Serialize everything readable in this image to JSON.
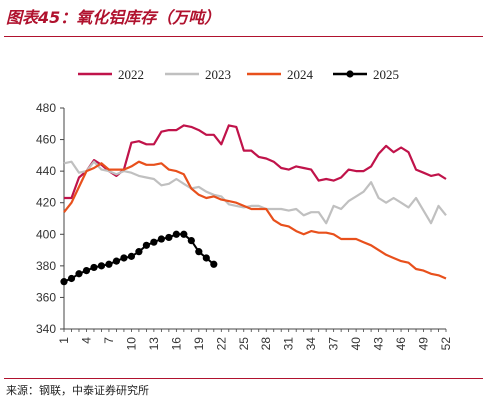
{
  "figure": {
    "title": "图表45：氧化铝库存（万吨）",
    "source": "来源：钢联，中泰证券研究所"
  },
  "colors": {
    "2022": "#c0134a",
    "2023": "#c0c0c0",
    "2024": "#e8501c",
    "2025": "#000000",
    "title": "#b0122e",
    "axis": "#444444"
  },
  "chart_data": {
    "type": "line",
    "title": "",
    "xlabel": "",
    "ylabel": "",
    "xlim": [
      1,
      52
    ],
    "ylim": [
      340,
      480
    ],
    "yticks": [
      340,
      360,
      380,
      400,
      420,
      440,
      460,
      480
    ],
    "xticks": [
      1,
      4,
      7,
      10,
      13,
      16,
      19,
      22,
      25,
      28,
      31,
      34,
      37,
      40,
      43,
      46,
      49,
      52
    ],
    "legend_position": "top",
    "grid": false,
    "series": [
      {
        "name": "2022",
        "markers": false,
        "x": [
          1,
          2,
          3,
          4,
          5,
          6,
          7,
          8,
          9,
          10,
          11,
          12,
          13,
          14,
          15,
          16,
          17,
          18,
          19,
          20,
          21,
          22,
          23,
          24,
          25,
          26,
          27,
          28,
          29,
          30,
          31,
          32,
          33,
          34,
          35,
          36,
          37,
          38,
          39,
          40,
          41,
          42,
          43,
          44,
          45,
          46,
          47,
          48,
          49,
          50,
          51,
          52
        ],
        "values": [
          423,
          423,
          436,
          440,
          447,
          444,
          440,
          437,
          441,
          458,
          459,
          457,
          457,
          465,
          466,
          466,
          469,
          468,
          466,
          463,
          463,
          457,
          469,
          468,
          453,
          453,
          449,
          448,
          446,
          442,
          441,
          443,
          442,
          441,
          434,
          435,
          434,
          436,
          441,
          440,
          440,
          443,
          451,
          456,
          452,
          455,
          452,
          441,
          439,
          437,
          438,
          435
        ]
      },
      {
        "name": "2023",
        "markers": false,
        "x": [
          1,
          2,
          3,
          4,
          5,
          6,
          7,
          8,
          9,
          10,
          11,
          12,
          13,
          14,
          15,
          16,
          17,
          18,
          19,
          20,
          21,
          22,
          23,
          24,
          25,
          26,
          27,
          28,
          29,
          30,
          31,
          32,
          33,
          34,
          35,
          36,
          37,
          38,
          39,
          40,
          41,
          42,
          43,
          44,
          45,
          46,
          47,
          48,
          49,
          50,
          51,
          52
        ],
        "values": [
          445,
          446,
          439,
          440,
          446,
          441,
          440,
          438,
          440,
          439,
          437,
          436,
          435,
          431,
          432,
          435,
          432,
          429,
          430,
          427,
          425,
          424,
          419,
          418,
          417,
          418,
          418,
          416,
          416,
          416,
          415,
          416,
          412,
          414,
          414,
          407,
          418,
          416,
          421,
          424,
          427,
          433,
          423,
          420,
          423,
          420,
          417,
          423,
          415,
          407,
          418,
          412
        ]
      },
      {
        "name": "2024",
        "markers": false,
        "x": [
          1,
          2,
          3,
          4,
          5,
          6,
          7,
          8,
          9,
          10,
          11,
          12,
          13,
          14,
          15,
          16,
          17,
          18,
          19,
          20,
          21,
          22,
          23,
          24,
          25,
          26,
          27,
          28,
          29,
          30,
          31,
          32,
          33,
          34,
          35,
          36,
          37,
          38,
          39,
          40,
          41,
          42,
          43,
          44,
          45,
          46,
          47,
          48,
          49,
          50,
          51,
          52
        ],
        "values": [
          414,
          420,
          430,
          440,
          442,
          445,
          441,
          441,
          441,
          443,
          446,
          444,
          444,
          445,
          441,
          440,
          438,
          429,
          425,
          423,
          424,
          422,
          421,
          420,
          418,
          416,
          416,
          416,
          409,
          406,
          405,
          402,
          400,
          402,
          401,
          401,
          400,
          397,
          397,
          397,
          395,
          393,
          390,
          387,
          385,
          383,
          382,
          378,
          377,
          375,
          374,
          372
        ]
      },
      {
        "name": "2025",
        "markers": true,
        "x": [
          1,
          2,
          3,
          4,
          5,
          6,
          7,
          8,
          9,
          10,
          11,
          12,
          13,
          14,
          15,
          16,
          17,
          18,
          19,
          20,
          21
        ],
        "values": [
          370,
          372,
          375,
          377,
          379,
          380,
          381,
          383,
          385,
          386,
          389,
          393,
          395,
          397,
          398,
          400,
          400,
          396,
          389,
          385,
          381
        ]
      }
    ]
  }
}
